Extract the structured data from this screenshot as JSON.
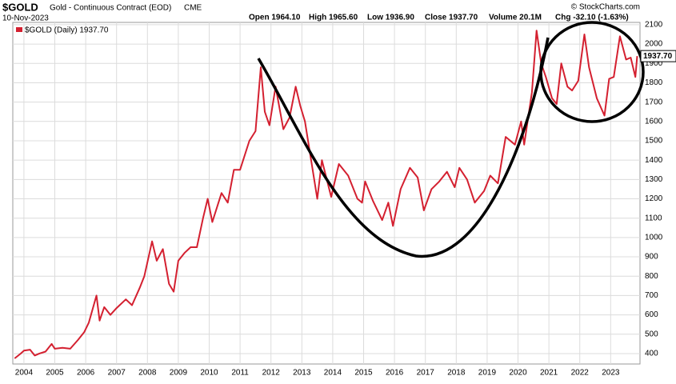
{
  "header": {
    "symbol": "$GOLD",
    "name": "Gold - Continuous Contract (EOD)",
    "exchange": "CME",
    "date": "10-Nov-2023",
    "open": "Open 1964.10",
    "high": "High 1965.60",
    "low": "Low 1936.90",
    "close": "Close 1937.70",
    "volume": "Volume 20.1M",
    "change": "Chg -32.10 (-1.63%)",
    "copyright": "© StockCharts.com"
  },
  "chart_data": {
    "type": "line",
    "legend": "$GOLD (Daily) 1937.70",
    "last_label": "1937.70",
    "color": "#d42030",
    "grid": true,
    "x": [
      2003.7,
      2003.9,
      2004.0,
      2004.2,
      2004.35,
      2004.5,
      2004.7,
      2004.9,
      2005.0,
      2005.25,
      2005.5,
      2005.75,
      2005.95,
      2006.1,
      2006.35,
      2006.45,
      2006.6,
      2006.8,
      2007.0,
      2007.3,
      2007.5,
      2007.75,
      2007.9,
      2008.15,
      2008.3,
      2008.5,
      2008.7,
      2008.85,
      2009.0,
      2009.2,
      2009.4,
      2009.6,
      2009.8,
      2009.95,
      2010.1,
      2010.4,
      2010.6,
      2010.8,
      2011.0,
      2011.3,
      2011.5,
      2011.67,
      2011.8,
      2011.95,
      2012.15,
      2012.4,
      2012.6,
      2012.8,
      2012.95,
      2013.1,
      2013.3,
      2013.5,
      2013.65,
      2013.95,
      2014.2,
      2014.5,
      2014.8,
      2014.95,
      2015.05,
      2015.3,
      2015.6,
      2015.8,
      2015.95,
      2016.2,
      2016.5,
      2016.75,
      2016.95,
      2017.2,
      2017.45,
      2017.7,
      2017.95,
      2018.1,
      2018.35,
      2018.6,
      2018.9,
      2019.1,
      2019.35,
      2019.6,
      2019.9,
      2020.1,
      2020.2,
      2020.45,
      2020.6,
      2020.75,
      2020.9,
      2021.1,
      2021.25,
      2021.4,
      2021.6,
      2021.75,
      2021.95,
      2022.15,
      2022.3,
      2022.55,
      2022.8,
      2022.95,
      2023.1,
      2023.3,
      2023.5,
      2023.65,
      2023.8,
      2023.86
    ],
    "values": [
      375,
      400,
      415,
      420,
      390,
      400,
      410,
      450,
      425,
      430,
      425,
      470,
      510,
      560,
      700,
      570,
      640,
      600,
      635,
      680,
      650,
      740,
      800,
      980,
      880,
      940,
      760,
      720,
      880,
      920,
      950,
      950,
      1100,
      1200,
      1080,
      1230,
      1180,
      1350,
      1350,
      1500,
      1550,
      1880,
      1650,
      1580,
      1780,
      1560,
      1620,
      1780,
      1680,
      1600,
      1400,
      1200,
      1400,
      1210,
      1380,
      1320,
      1200,
      1180,
      1290,
      1190,
      1090,
      1180,
      1060,
      1250,
      1360,
      1310,
      1140,
      1250,
      1290,
      1340,
      1260,
      1360,
      1300,
      1180,
      1240,
      1320,
      1280,
      1520,
      1480,
      1600,
      1480,
      1750,
      2070,
      1900,
      1830,
      1720,
      1690,
      1900,
      1780,
      1760,
      1810,
      2050,
      1880,
      1720,
      1630,
      1820,
      1830,
      2040,
      1920,
      1930,
      1830,
      1937.7
    ],
    "xlim": [
      2003.64,
      2023.95
    ],
    "xticks": [
      2004,
      2005,
      2006,
      2007,
      2008,
      2009,
      2010,
      2011,
      2012,
      2013,
      2014,
      2015,
      2016,
      2017,
      2018,
      2019,
      2020,
      2021,
      2022,
      2023
    ],
    "ylim": [
      346,
      2112
    ],
    "yticks": [
      400,
      500,
      600,
      700,
      800,
      900,
      1000,
      1100,
      1200,
      1300,
      1400,
      1500,
      1600,
      1700,
      1800,
      1900,
      2000,
      2100
    ]
  }
}
